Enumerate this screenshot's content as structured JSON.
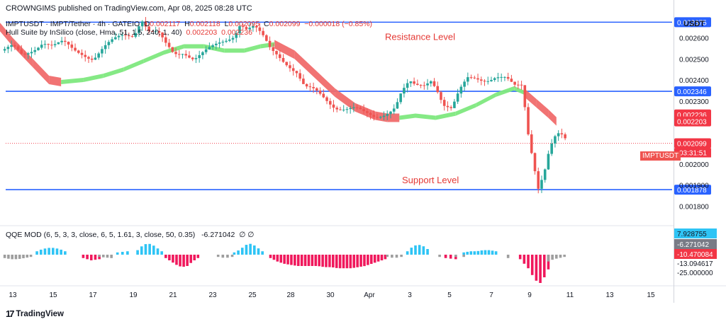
{
  "header": {
    "publisher": "CROWNGIMS published on TradingView.com, Apr 08, 2025 08:28 UTC",
    "symbol_desc": "IMPTUSDT · IMPT/Tether · 4h · GATEIO",
    "ohlc_prefix": {
      "o": "O",
      "h": "H",
      "l": "L",
      "c": "C"
    },
    "open": "0.002117",
    "high": "0.002118",
    "low": "0.002095",
    "close": "0.002099",
    "change": "−0.000018 (−0.85%)",
    "hull_label": "Hull Suite by InSilico (close, Hma, 51, 1.5, 240, 1, 40)",
    "hull_v1": "0.002203",
    "hull_v2": "0.002236",
    "qqe_label": "QQE MOD (6, 5, 3, 3, close, 6, 5, 1.61, 3, close, 50, 0.35)",
    "qqe_value": "-6.271042",
    "qqe_na": "∅  ∅"
  },
  "axis": {
    "currency": "USDT",
    "symbol_tag": "IMPTUSDT",
    "countdown": "03:31:51"
  },
  "footer": {
    "logo_text": "TradingView",
    "logo_mark": "17"
  },
  "colors": {
    "up": "#26a69a",
    "down": "#ef5350",
    "level": "#2962ff",
    "hull_up": "#7ee87e",
    "hull_down": "#f06b6b",
    "qqe_up": "#2ec4f5",
    "qqe_down": "#f0185c",
    "qqe_neutral": "#9e9e9e",
    "text_red": "#e53935"
  },
  "chart_data": [
    {
      "type": "candlestick",
      "title": "IMPTUSDT · IMPT/Tether · 4h · GATEIO",
      "ylim": [
        0.00171,
        0.00272
      ],
      "y_ticks": [
        {
          "value": 0.0018,
          "label": "0.001800"
        },
        {
          "value": 0.0019,
          "label": "0.001900"
        },
        {
          "value": 0.002,
          "label": "0.002000"
        },
        {
          "value": 0.0023,
          "label": "0.002300"
        },
        {
          "value": 0.0024,
          "label": "0.002400"
        },
        {
          "value": 0.0025,
          "label": "0.002500"
        },
        {
          "value": 0.0026,
          "label": "0.002600"
        }
      ],
      "x_ticks": [
        "13",
        "15",
        "17",
        "19",
        "21",
        "23",
        "25",
        "28",
        "30",
        "Apr",
        "3",
        "5",
        "7",
        "9",
        "11",
        "13",
        "15"
      ],
      "levels": [
        {
          "name": "resistance-top",
          "value": 0.002675,
          "label": "0.002675",
          "text": ""
        },
        {
          "name": "resistance",
          "value": 0.002346,
          "label": "0.002346",
          "text": "Resistance Level"
        },
        {
          "name": "support",
          "value": 0.001878,
          "label": "0.001878",
          "text": "Support Level"
        }
      ],
      "price_tags": [
        {
          "value": 0.002236,
          "label": "0.002236"
        },
        {
          "value": 0.002203,
          "label": "0.002203"
        },
        {
          "value": 0.002099,
          "label": "0.002099"
        }
      ],
      "close_path": [
        {
          "d": 12.6,
          "v": 0.00254
        },
        {
          "d": 13.0,
          "v": 0.00255
        },
        {
          "d": 13.5,
          "v": 0.00251
        },
        {
          "d": 14.0,
          "v": 0.00255
        },
        {
          "d": 14.5,
          "v": 0.00259
        },
        {
          "d": 15.0,
          "v": 0.00256
        },
        {
          "d": 15.5,
          "v": 0.00257
        },
        {
          "d": 16.0,
          "v": 0.00254
        },
        {
          "d": 16.5,
          "v": 0.00253
        },
        {
          "d": 17.0,
          "v": 0.00251
        },
        {
          "d": 17.5,
          "v": 0.00255
        },
        {
          "d": 18.0,
          "v": 0.00258
        },
        {
          "d": 18.5,
          "v": 0.00261
        },
        {
          "d": 19.0,
          "v": 0.00262
        },
        {
          "d": 19.4,
          "v": 0.0027
        },
        {
          "d": 19.8,
          "v": 0.00263
        },
        {
          "d": 20.2,
          "v": 0.00262
        },
        {
          "d": 20.6,
          "v": 0.00256
        },
        {
          "d": 21.0,
          "v": 0.00252
        },
        {
          "d": 21.5,
          "v": 0.00254
        },
        {
          "d": 22.0,
          "v": 0.00251
        },
        {
          "d": 22.5,
          "v": 0.00253
        },
        {
          "d": 23.0,
          "v": 0.00255
        },
        {
          "d": 23.5,
          "v": 0.00258
        },
        {
          "d": 24.0,
          "v": 0.00262
        },
        {
          "d": 24.3,
          "v": 0.00268
        },
        {
          "d": 24.6,
          "v": 0.00265
        },
        {
          "d": 25.0,
          "v": 0.00265
        },
        {
          "d": 25.4,
          "v": 0.0026
        },
        {
          "d": 25.8,
          "v": 0.00254
        },
        {
          "d": 26.2,
          "v": 0.00252
        },
        {
          "d": 26.7,
          "v": 0.00248
        },
        {
          "d": 27.1,
          "v": 0.00244
        },
        {
          "d": 27.5,
          "v": 0.00236
        },
        {
          "d": 28.0,
          "v": 0.00234
        },
        {
          "d": 28.5,
          "v": 0.00231
        },
        {
          "d": 29.0,
          "v": 0.00228
        },
        {
          "d": 29.5,
          "v": 0.00227
        },
        {
          "d": 30.0,
          "v": 0.00226
        },
        {
          "d": 30.5,
          "v": 0.00223
        },
        {
          "d": 31.0,
          "v": 0.00222
        },
        {
          "d": 31.5,
          "v": 0.00225
        },
        {
          "d": 32.0,
          "v": 0.00228
        },
        {
          "d": 32.3,
          "v": 0.00234
        },
        {
          "d": 32.7,
          "v": 0.00238
        },
        {
          "d": 33.0,
          "v": 0.00236
        },
        {
          "d": 33.4,
          "v": 0.00237
        },
        {
          "d": 33.8,
          "v": 0.00241
        },
        {
          "d": 34.1,
          "v": 0.00236
        },
        {
          "d": 34.4,
          "v": 0.00229
        },
        {
          "d": 34.8,
          "v": 0.00226
        },
        {
          "d": 35.2,
          "v": 0.00234
        },
        {
          "d": 35.6,
          "v": 0.0024
        },
        {
          "d": 36.0,
          "v": 0.00241
        },
        {
          "d": 36.5,
          "v": 0.00241
        },
        {
          "d": 37.0,
          "v": 0.00242
        },
        {
          "d": 37.5,
          "v": 0.0024
        },
        {
          "d": 37.9,
          "v": 0.00236
        },
        {
          "d": 38.3,
          "v": 0.00237
        },
        {
          "d": 38.6,
          "v": 0.00215
        },
        {
          "d": 38.9,
          "v": 0.002
        },
        {
          "d": 39.1,
          "v": 0.0019
        },
        {
          "d": 39.4,
          "v": 0.00197
        },
        {
          "d": 39.6,
          "v": 0.00205
        },
        {
          "d": 39.8,
          "v": 0.0021
        },
        {
          "d": 40.0,
          "v": 0.00213
        },
        {
          "d": 40.2,
          "v": 0.00213
        },
        {
          "d": 40.4,
          "v": 0.00211
        },
        {
          "d": 40.5,
          "v": 0.002099
        }
      ],
      "hull_suite": [
        {
          "d": 12.3,
          "v": 0.00266,
          "trend": "down"
        },
        {
          "d": 13.0,
          "v": 0.00258,
          "trend": "down"
        },
        {
          "d": 14.0,
          "v": 0.00248,
          "trend": "down"
        },
        {
          "d": 14.8,
          "v": 0.0024,
          "trend": "down"
        },
        {
          "d": 15.4,
          "v": 0.00239,
          "trend": "up"
        },
        {
          "d": 16.5,
          "v": 0.0024,
          "trend": "up"
        },
        {
          "d": 17.5,
          "v": 0.00242,
          "trend": "up"
        },
        {
          "d": 18.5,
          "v": 0.00245,
          "trend": "up"
        },
        {
          "d": 19.5,
          "v": 0.00249,
          "trend": "up"
        },
        {
          "d": 20.5,
          "v": 0.00253,
          "trend": "up"
        },
        {
          "d": 21.5,
          "v": 0.00256,
          "trend": "up"
        },
        {
          "d": 22.5,
          "v": 0.00256,
          "trend": "up"
        },
        {
          "d": 23.5,
          "v": 0.00254,
          "trend": "up"
        },
        {
          "d": 24.5,
          "v": 0.00254,
          "trend": "up"
        },
        {
          "d": 25.3,
          "v": 0.00256,
          "trend": "up"
        },
        {
          "d": 26.0,
          "v": 0.00257,
          "trend": "down"
        },
        {
          "d": 27.0,
          "v": 0.00252,
          "trend": "down"
        },
        {
          "d": 28.0,
          "v": 0.00243,
          "trend": "down"
        },
        {
          "d": 29.0,
          "v": 0.00234,
          "trend": "down"
        },
        {
          "d": 30.0,
          "v": 0.00227,
          "trend": "down"
        },
        {
          "d": 31.0,
          "v": 0.00223,
          "trend": "down"
        },
        {
          "d": 31.6,
          "v": 0.00222,
          "trend": "down"
        },
        {
          "d": 32.2,
          "v": 0.00222,
          "trend": "up"
        },
        {
          "d": 33.0,
          "v": 0.00223,
          "trend": "up"
        },
        {
          "d": 34.0,
          "v": 0.00222,
          "trend": "up"
        },
        {
          "d": 35.0,
          "v": 0.00224,
          "trend": "up"
        },
        {
          "d": 36.0,
          "v": 0.00228,
          "trend": "up"
        },
        {
          "d": 37.0,
          "v": 0.00233,
          "trend": "up"
        },
        {
          "d": 37.9,
          "v": 0.00236,
          "trend": "up"
        },
        {
          "d": 38.4,
          "v": 0.00234,
          "trend": "down"
        },
        {
          "d": 39.0,
          "v": 0.00229,
          "trend": "down"
        },
        {
          "d": 39.6,
          "v": 0.00224,
          "trend": "down"
        },
        {
          "d": 40.0,
          "v": 0.002203,
          "trend": "down"
        }
      ],
      "annotations": [
        "Resistance Level",
        "Support Level"
      ]
    },
    {
      "type": "bar",
      "title": "QQE MOD (6, 5, 3, 3, close, 6, 5, 1.61, 3, close, 50, 0.35)",
      "ylim": [
        -28,
        14
      ],
      "y_ticks": [
        {
          "value": 7.928755,
          "label": "7.928755"
        },
        {
          "value": -6.271042,
          "label": "-6.271042"
        },
        {
          "value": -10.470084,
          "label": "-10.470084"
        },
        {
          "value": -13.094617,
          "label": "-13.094617"
        },
        {
          "value": -25.0,
          "label": "-25.000000"
        }
      ],
      "segments": [
        {
          "d0": 12.6,
          "d1": 13.9,
          "shape": [
            -3,
            -4,
            -4,
            -3,
            -2
          ],
          "color": "neutral"
        },
        {
          "d0": 14.2,
          "d1": 15.6,
          "shape": [
            3,
            5,
            6,
            6,
            5,
            3
          ],
          "color": "up"
        },
        {
          "d0": 16.5,
          "d1": 17.3,
          "shape": [
            -3,
            -5,
            -4
          ],
          "color": "down"
        },
        {
          "d0": 17.3,
          "d1": 17.9,
          "shape": [
            -2,
            -3
          ],
          "color": "neutral"
        },
        {
          "d0": 18.2,
          "d1": 18.7,
          "shape": [
            2,
            3
          ],
          "color": "up"
        },
        {
          "d0": 19.2,
          "d1": 20.4,
          "shape": [
            4,
            8,
            10,
            9,
            6,
            3
          ],
          "color": "up"
        },
        {
          "d0": 20.6,
          "d1": 22.2,
          "shape": [
            -3,
            -6,
            -9,
            -11,
            -10,
            -6,
            -3
          ],
          "color": "down"
        },
        {
          "d0": 23.2,
          "d1": 23.9,
          "shape": [
            -2,
            -3,
            -2
          ],
          "color": "neutral"
        },
        {
          "d0": 24.0,
          "d1": 25.4,
          "shape": [
            2,
            4,
            7,
            10,
            9,
            6,
            3
          ],
          "color": "up"
        },
        {
          "d0": 25.8,
          "d1": 31.5,
          "shape": [
            -3,
            -6,
            -8,
            -9,
            -10,
            -10,
            -10,
            -10,
            -11,
            -11,
            -12,
            -12,
            -12,
            -11,
            -10,
            -8,
            -6,
            -4
          ],
          "color": "down"
        },
        {
          "d0": 31.6,
          "d1": 32.3,
          "shape": [
            -2,
            -3,
            -2
          ],
          "color": "neutral"
        },
        {
          "d0": 32.6,
          "d1": 33.6,
          "shape": [
            3,
            7,
            9,
            8,
            5
          ],
          "color": "up"
        },
        {
          "d0": 34.2,
          "d1": 34.5,
          "shape": [
            -2
          ],
          "color": "neutral"
        },
        {
          "d0": 34.5,
          "d1": 35.0,
          "shape": [
            -3,
            -4
          ],
          "color": "down"
        },
        {
          "d0": 35.0,
          "d1": 35.4,
          "shape": [
            -2
          ],
          "color": "neutral"
        },
        {
          "d0": 35.4,
          "d1": 37.0,
          "shape": [
            2,
            3,
            3,
            4,
            4,
            3
          ],
          "color": "up"
        },
        {
          "d0": 37.6,
          "d1": 37.8,
          "shape": [
            -3
          ],
          "color": "neutral"
        },
        {
          "d0": 38.2,
          "d1": 39.6,
          "shape": [
            -4,
            -8,
            -12,
            -18,
            -23,
            -25,
            -20,
            -13
          ],
          "color": "down"
        },
        {
          "d0": 39.6,
          "d1": 40.4,
          "shape": [
            -6,
            -4,
            -3,
            -2
          ],
          "color": "neutral"
        }
      ]
    }
  ]
}
